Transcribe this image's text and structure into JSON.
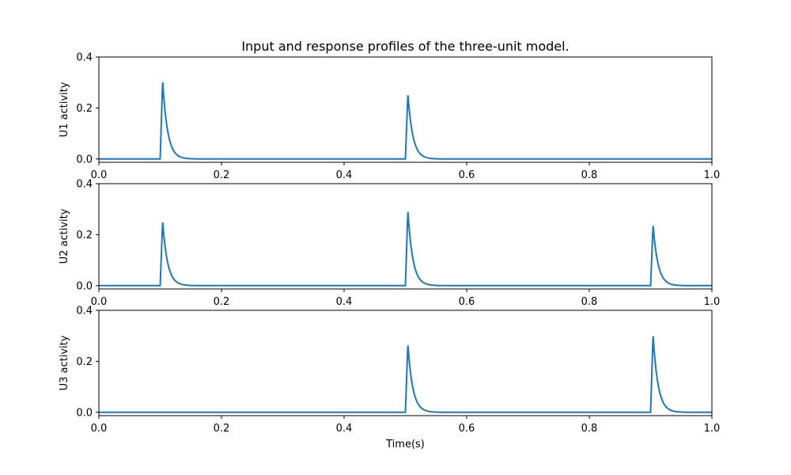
{
  "figure_title": "Input and response profiles of the three-unit model.",
  "chart_data": [
    {
      "type": "line",
      "ylabel": "U1 activity",
      "xlabel": "",
      "xlim": [
        0.0,
        1.0
      ],
      "ylim": [
        -0.013,
        0.4
      ],
      "xticks": [
        "0.0",
        "0.2",
        "0.4",
        "0.6",
        "0.8",
        "1.0"
      ],
      "yticks": [
        "0.0",
        "0.2",
        "0.4"
      ],
      "grid": false,
      "series_color": "#1f77b4",
      "baseline": 0.0,
      "pulses": [
        {
          "onset": 0.1,
          "peak": 0.307
        },
        {
          "onset": 0.5,
          "peak": 0.255
        }
      ]
    },
    {
      "type": "line",
      "ylabel": "U2 activity",
      "xlabel": "",
      "xlim": [
        0.0,
        1.0
      ],
      "ylim": [
        -0.013,
        0.4
      ],
      "xticks": [
        "0.0",
        "0.2",
        "0.4",
        "0.6",
        "0.8",
        "1.0"
      ],
      "yticks": [
        "0.0",
        "0.2",
        "0.4"
      ],
      "grid": false,
      "series_color": "#1f77b4",
      "baseline": 0.0,
      "pulses": [
        {
          "onset": 0.1,
          "peak": 0.253
        },
        {
          "onset": 0.5,
          "peak": 0.295
        },
        {
          "onset": 0.9,
          "peak": 0.239
        }
      ]
    },
    {
      "type": "line",
      "ylabel": "U3 activity",
      "xlabel": "Time(s)",
      "xlim": [
        0.0,
        1.0
      ],
      "ylim": [
        -0.013,
        0.4
      ],
      "xticks": [
        "0.0",
        "0.2",
        "0.4",
        "0.6",
        "0.8",
        "1.0"
      ],
      "yticks": [
        "0.0",
        "0.2",
        "0.4"
      ],
      "grid": false,
      "series_color": "#1f77b4",
      "baseline": 0.0,
      "pulses": [
        {
          "onset": 0.5,
          "peak": 0.268
        },
        {
          "onset": 0.9,
          "peak": 0.305
        }
      ]
    }
  ]
}
